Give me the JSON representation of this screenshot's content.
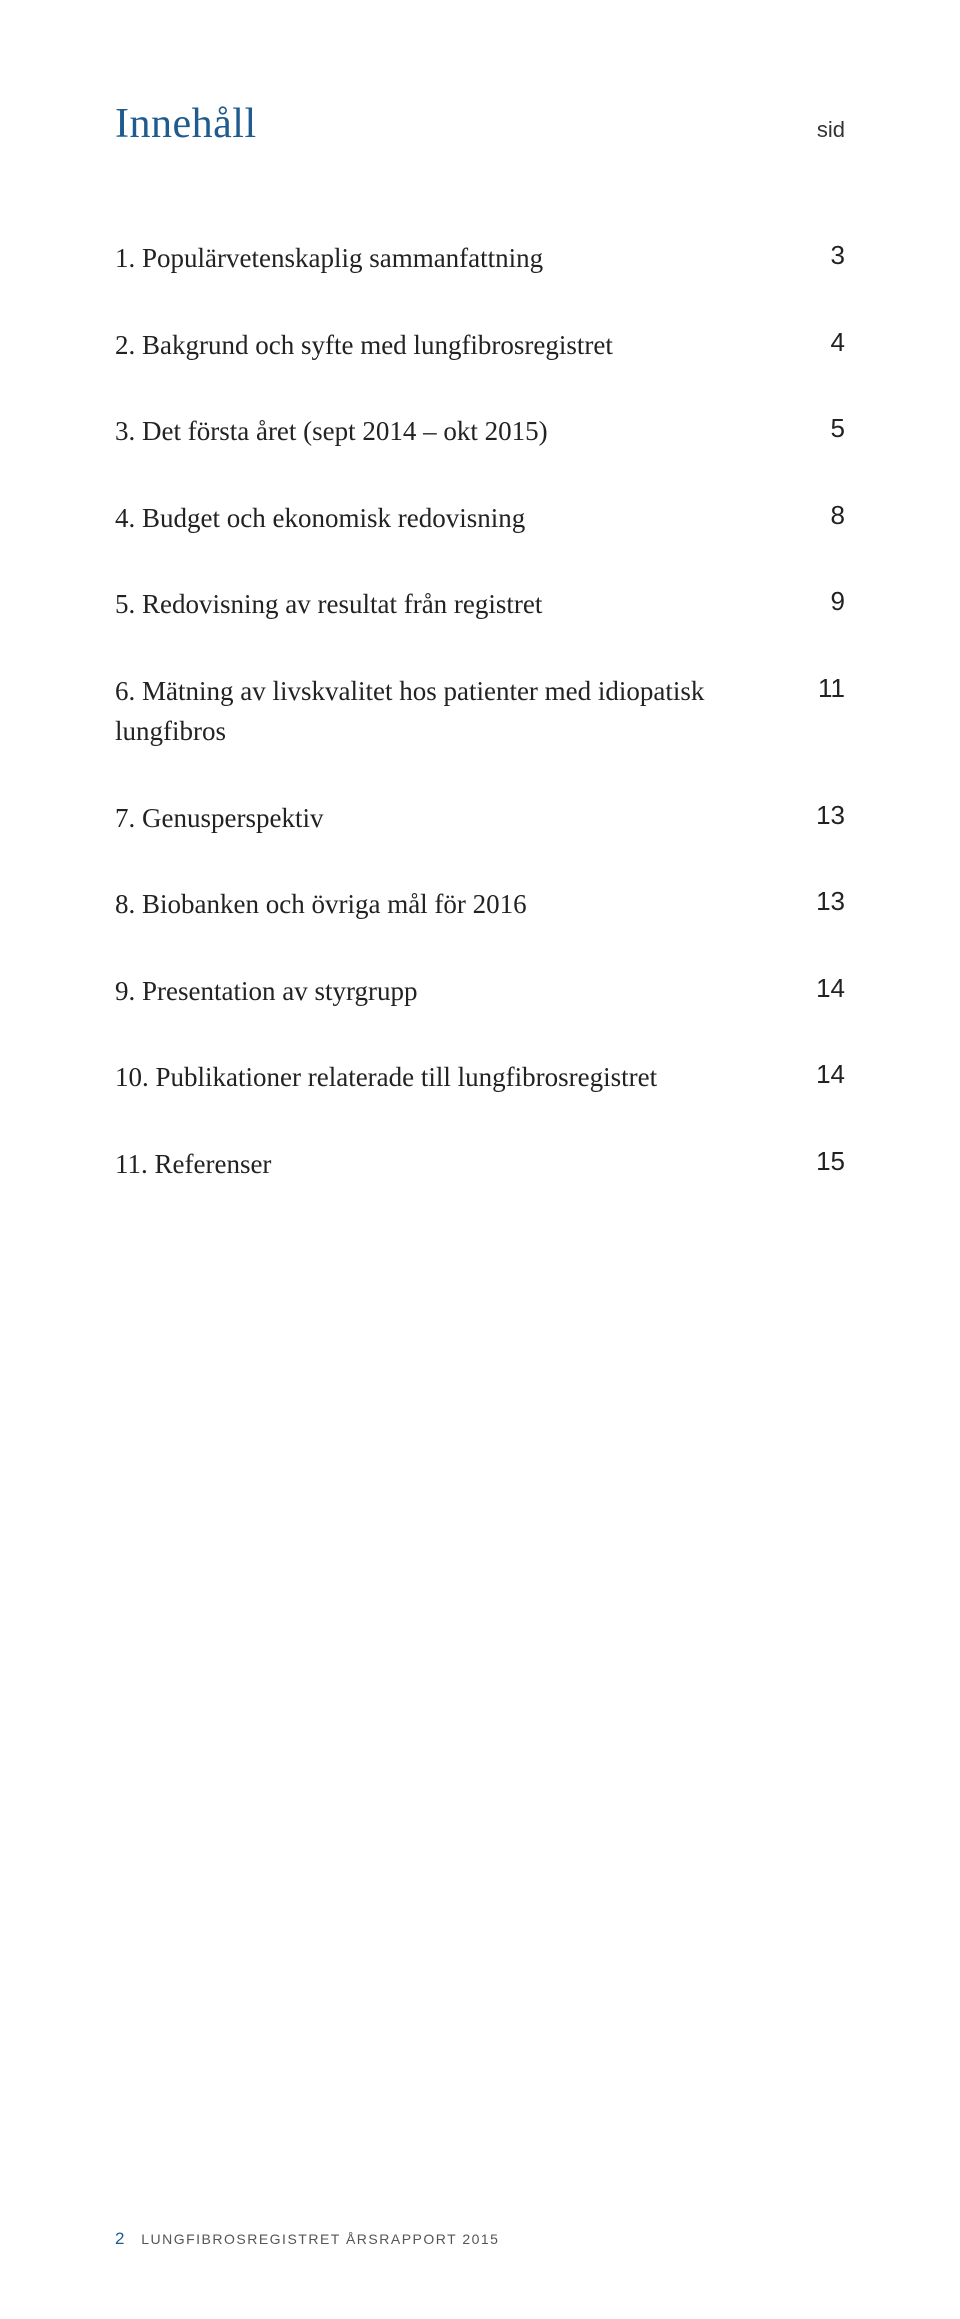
{
  "header": {
    "title": "Innehåll",
    "page_column_label": "sid"
  },
  "toc": {
    "items": [
      {
        "num": "1.",
        "label": "Populärvetenskaplig sammanfattning",
        "page": "3"
      },
      {
        "num": "2.",
        "label": "Bakgrund och syfte med lungfibrosregistret",
        "page": "4"
      },
      {
        "num": "3.",
        "label": "Det första året (sept 2014 – okt 2015)",
        "page": "5"
      },
      {
        "num": "4.",
        "label": "Budget och ekonomisk redovisning",
        "page": "8"
      },
      {
        "num": "5.",
        "label": "Redovisning av resultat från registret",
        "page": "9"
      },
      {
        "num": "6.",
        "label": "Mätning av livskvalitet hos patienter med idiopatisk lungfibros",
        "page": "11"
      },
      {
        "num": "7.",
        "label": "Genusperspektiv",
        "page": "13"
      },
      {
        "num": "8.",
        "label": "Biobanken och övriga mål för 2016",
        "page": "13"
      },
      {
        "num": "9.",
        "label": "Presentation av styrgrupp",
        "page": "14"
      },
      {
        "num": "10.",
        "label": "Publikationer relaterade till lungfibrosregistret",
        "page": "14"
      },
      {
        "num": "11.",
        "label": "Referenser",
        "page": "15"
      }
    ]
  },
  "footer": {
    "page_number": "2",
    "report_name": "LUNGFIBROSREGISTRET ÅRSRAPPORT 2015"
  },
  "colors": {
    "title_color": "#1f5b8f",
    "text_color": "#222222",
    "background": "#ffffff"
  },
  "typography": {
    "title_fontsize_pt": 32,
    "body_fontsize_pt": 20,
    "footer_fontsize_pt": 11
  }
}
